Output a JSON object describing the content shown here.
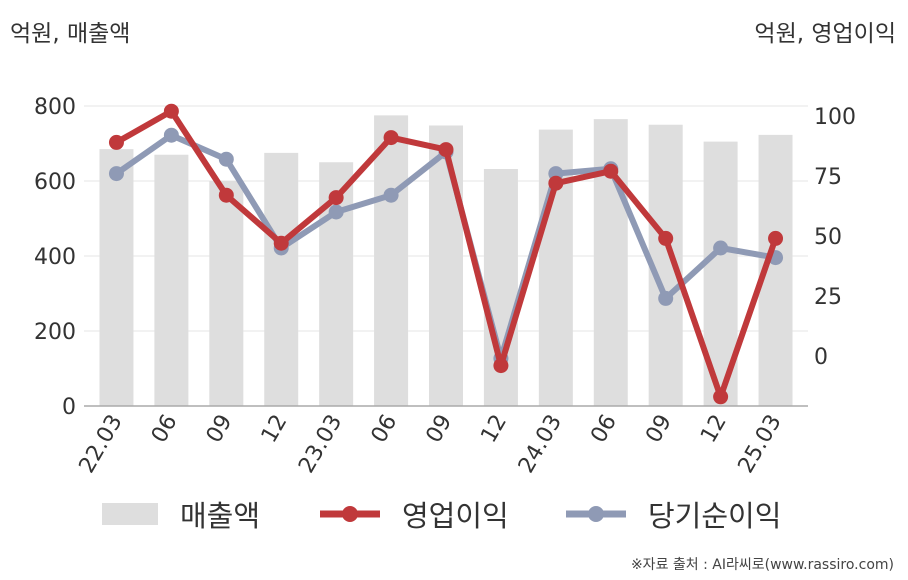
{
  "units": {
    "left": "억원, 매출액",
    "right": "억원, 영업이익"
  },
  "source": "※자료 출처 : AI라씨로(www.rassiro.com)",
  "colors": {
    "revenue": "#dedede",
    "operating": "#c0393b",
    "net": "#8f9ab5",
    "axis": "#aaaaaa",
    "grid": "#e6e6e6"
  },
  "chart_data": {
    "type": "bar",
    "categories": [
      "22.03",
      "06",
      "09",
      "12",
      "23.03",
      "06",
      "09",
      "12",
      "24.03",
      "06",
      "09",
      "12",
      "25.03"
    ],
    "y_left": {
      "min": 0,
      "max": 800,
      "ticks": [
        "0",
        "200",
        "400",
        "600",
        "800"
      ]
    },
    "y_right": {
      "min": -20,
      "max": 105,
      "ticks": [
        "0",
        "25",
        "50",
        "75",
        "100"
      ]
    },
    "grid": true,
    "legend_position": "bottom",
    "series": [
      {
        "name": "매출액",
        "kind": "bar",
        "axis": "left",
        "values": [
          685,
          670,
          600,
          675,
          650,
          775,
          748,
          632,
          737,
          765,
          750,
          705,
          723
        ]
      },
      {
        "name": "영업이익",
        "kind": "line",
        "axis": "right",
        "values": [
          89,
          102,
          67,
          47,
          66,
          91,
          86,
          -4,
          72,
          77,
          49,
          -17,
          49
        ]
      },
      {
        "name": "당기순이익",
        "kind": "line",
        "axis": "right",
        "values": [
          76,
          92,
          82,
          45,
          60,
          67,
          85,
          -1,
          76,
          78,
          24,
          45,
          41
        ]
      }
    ]
  }
}
